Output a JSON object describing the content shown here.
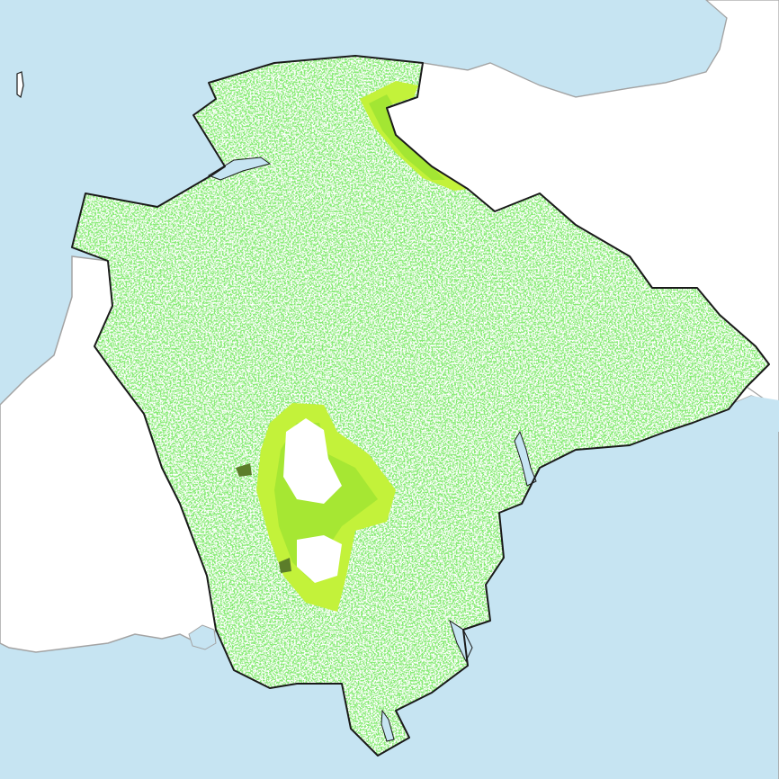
{
  "map": {
    "colors": {
      "sea": "#c6e4f2",
      "land": "#ffffff",
      "coastline": "#a3a3a3",
      "border": "#1a1a1a",
      "woodland": "#3cd12c",
      "moorland": "#c3f23a",
      "moor_scrub": "#8ede2e",
      "dark_patch": "#5c7d2a"
    }
  }
}
